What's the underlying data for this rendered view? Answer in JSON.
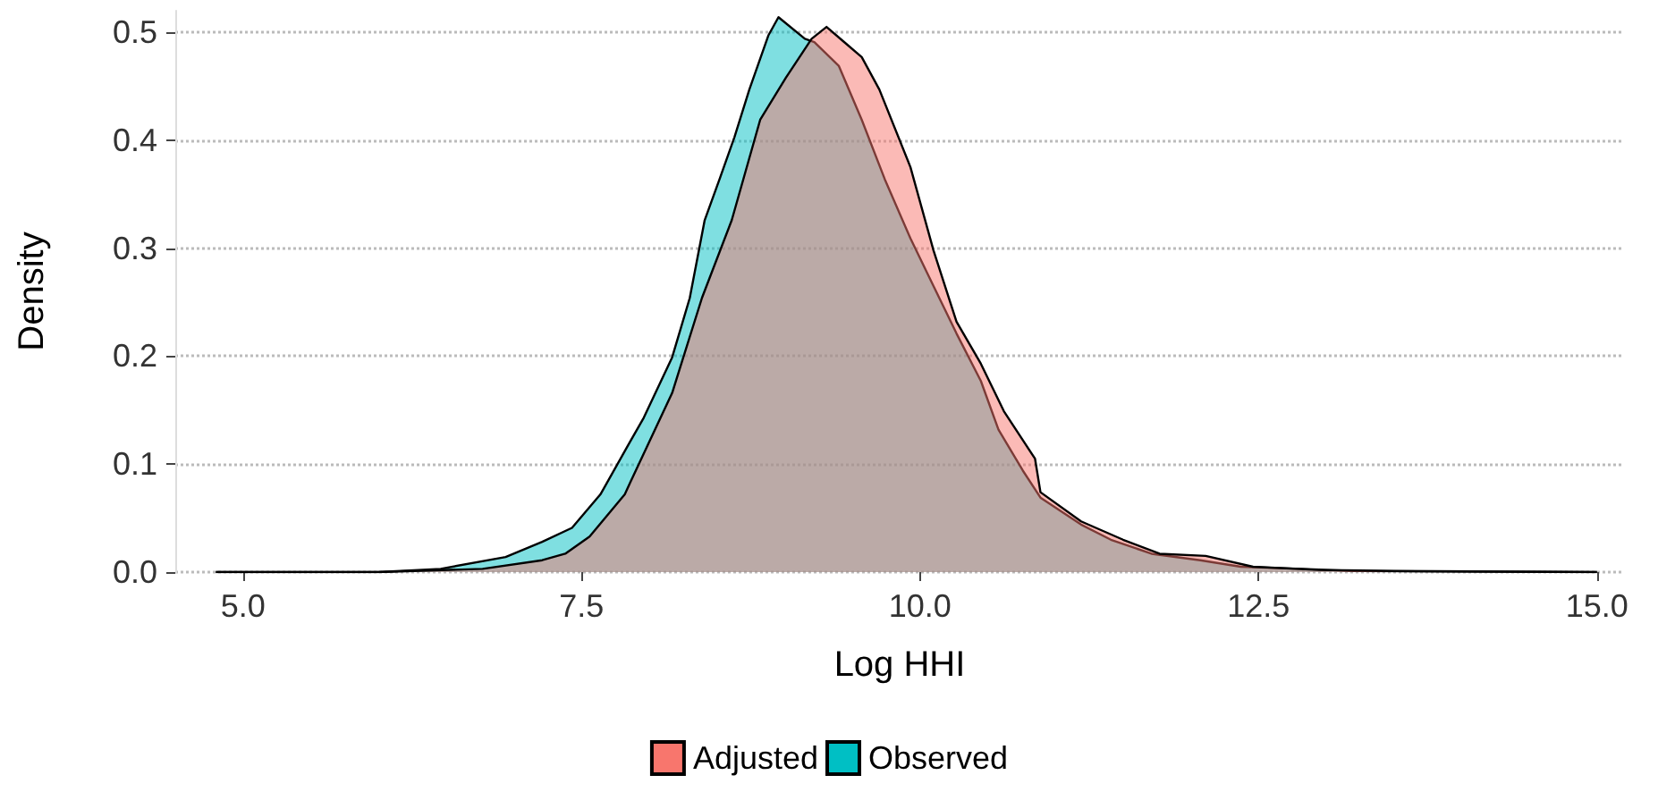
{
  "chart_data": {
    "type": "area",
    "xlabel": "Log HHI",
    "ylabel": "Density",
    "xlim": [
      4.5,
      15.2
    ],
    "xticks": [
      {
        "value": 5,
        "label": "5.0"
      },
      7.5,
      {
        "value": 10,
        "label": "10.0"
      },
      12.5,
      {
        "value": 15,
        "label": "15.0"
      }
    ],
    "ylim": [
      0,
      0.52
    ],
    "yticks": [
      {
        "value": 0,
        "label": "0.0"
      },
      0.1,
      0.2,
      0.3,
      0.4,
      0.5
    ],
    "grid": "y",
    "legend": "bottom",
    "marker": "none",
    "line_style": "solid",
    "series": [
      {
        "name": "Adjusted",
        "color": "#f8766d",
        "x": [
          4.8,
          6.0,
          6.77,
          7.21,
          7.38,
          7.56,
          7.82,
          7.86,
          8.17,
          8.39,
          8.61,
          8.82,
          9.01,
          9.2,
          9.31,
          9.44,
          9.57,
          9.7,
          9.93,
          10.1,
          10.27,
          10.45,
          10.62,
          10.85,
          10.89,
          11.19,
          11.5,
          11.77,
          12.11,
          12.46,
          12.95,
          13.5,
          15.0
        ],
        "values": [
          0,
          0,
          0.003,
          0.011,
          0.017,
          0.033,
          0.072,
          0.083,
          0.166,
          0.254,
          0.326,
          0.419,
          0.458,
          0.494,
          0.505,
          0.491,
          0.477,
          0.447,
          0.375,
          0.298,
          0.232,
          0.193,
          0.149,
          0.105,
          0.074,
          0.047,
          0.03,
          0.017,
          0.015,
          0.005,
          0.002,
          0.001,
          0
        ]
      },
      {
        "name": "Observed",
        "color": "#00bfc4",
        "x": [
          4.8,
          6.0,
          6.46,
          6.94,
          7.21,
          7.43,
          7.64,
          7.86,
          7.96,
          8.17,
          8.3,
          8.41,
          8.52,
          8.63,
          8.74,
          8.88,
          8.955,
          9.15,
          9.22,
          9.4,
          9.57,
          9.74,
          9.93,
          10.1,
          10.27,
          10.45,
          10.58,
          10.76,
          10.89,
          11.19,
          11.41,
          11.71,
          12.07,
          12.37,
          12.82,
          13.2,
          15.0
        ],
        "values": [
          0,
          0,
          0.003,
          0.014,
          0.028,
          0.041,
          0.072,
          0.121,
          0.143,
          0.199,
          0.254,
          0.326,
          0.364,
          0.403,
          0.447,
          0.497,
          0.514,
          0.494,
          0.491,
          0.469,
          0.419,
          0.364,
          0.309,
          0.265,
          0.221,
          0.177,
          0.132,
          0.094,
          0.069,
          0.044,
          0.03,
          0.017,
          0.011,
          0.005,
          0.003,
          0.001,
          0
        ]
      }
    ]
  }
}
